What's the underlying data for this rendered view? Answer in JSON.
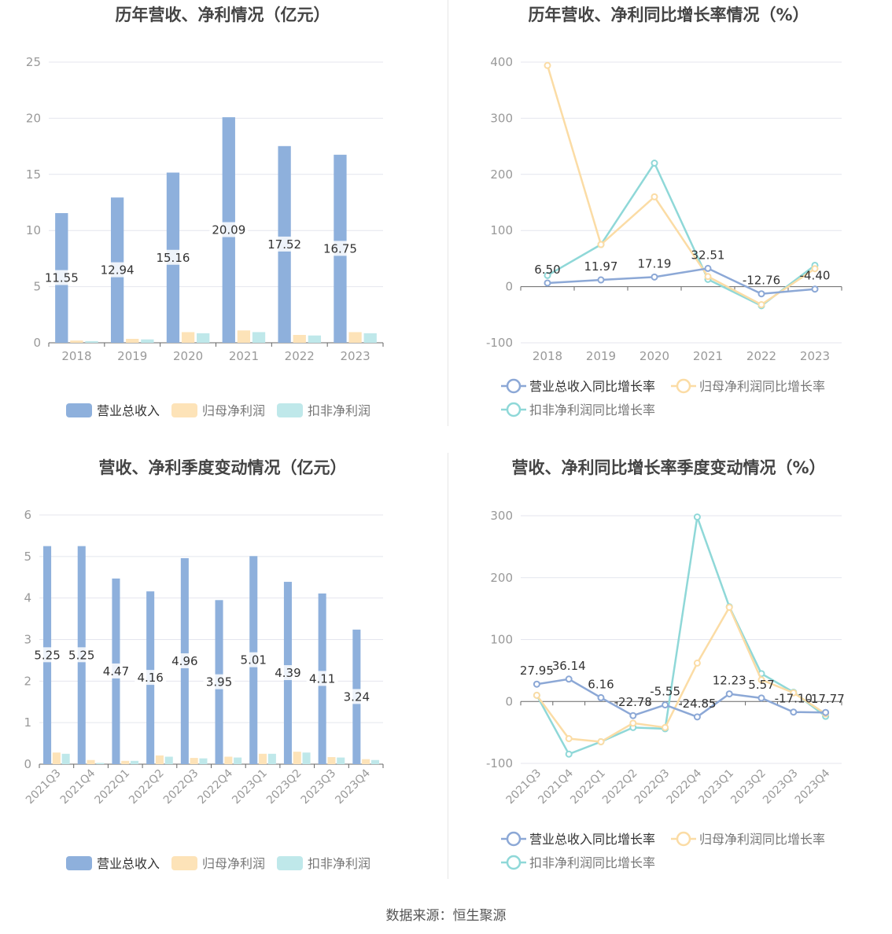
{
  "source": "数据来源：恒生聚源",
  "colors": {
    "revenue": "#8eb0dc",
    "parent_profit": "#fde3b8",
    "deducted_profit": "#bfe8ea",
    "revenue_line": "#8ca8d6",
    "parent_line": "#fbdca5",
    "deducted_line": "#8fd8d8",
    "axis_text": "#999999",
    "grid": "#e4e6ee",
    "title": "#444444"
  },
  "chart_data": [
    {
      "type": "bar",
      "title": "历年营收、净利情况（亿元）",
      "categories": [
        "2018",
        "2019",
        "2020",
        "2021",
        "2022",
        "2023"
      ],
      "ylim": [
        0,
        25
      ],
      "yticks": [
        "0",
        "5",
        "10",
        "15",
        "20",
        "25"
      ],
      "legend_position": "bottom",
      "series": [
        {
          "name": "营业总收入",
          "values": [
            11.55,
            12.94,
            15.16,
            20.09,
            17.52,
            16.75
          ],
          "labels": [
            "11.55",
            "12.94",
            "15.16",
            "20.09",
            "17.52",
            "16.75"
          ]
        },
        {
          "name": "归母净利润",
          "values": [
            0.2,
            0.35,
            0.95,
            1.1,
            0.7,
            0.95
          ]
        },
        {
          "name": "扣非净利润",
          "values": [
            0.15,
            0.3,
            0.85,
            0.95,
            0.65,
            0.85
          ]
        }
      ]
    },
    {
      "type": "line",
      "title": "历年营收、净利同比增长率情况（%）",
      "categories": [
        "2018",
        "2019",
        "2020",
        "2021",
        "2022",
        "2023"
      ],
      "ylim": [
        -100,
        400
      ],
      "yticks": [
        "-100",
        "0",
        "100",
        "200",
        "300",
        "400"
      ],
      "legend_position": "bottom",
      "series": [
        {
          "name": "营业总收入同比增长率",
          "values": [
            6.5,
            11.97,
            17.19,
            32.51,
            -12.76,
            -4.4
          ],
          "labels": [
            "6.50",
            "11.97",
            "17.19",
            "32.51",
            "-12.76",
            "-4.40"
          ]
        },
        {
          "name": "归母净利润同比增长率",
          "values": [
            394,
            75,
            160,
            18,
            -32,
            32
          ]
        },
        {
          "name": "扣非净利润同比增长率",
          "values": [
            20,
            75,
            220,
            13,
            -34,
            38
          ]
        }
      ]
    },
    {
      "type": "bar",
      "title": "营收、净利季度变动情况（亿元）",
      "categories": [
        "2021Q3",
        "2021Q4",
        "2022Q1",
        "2022Q2",
        "2022Q3",
        "2022Q4",
        "2023Q1",
        "2023Q2",
        "2023Q3",
        "2023Q4"
      ],
      "ylim": [
        0,
        6
      ],
      "yticks": [
        "0",
        "1",
        "2",
        "3",
        "4",
        "5",
        "6"
      ],
      "legend_position": "bottom",
      "series": [
        {
          "name": "营业总收入",
          "values": [
            5.25,
            5.25,
            4.47,
            4.16,
            4.96,
            3.95,
            5.01,
            4.39,
            4.11,
            3.24
          ],
          "labels": [
            "5.25",
            "5.25",
            "4.47",
            "4.16",
            "4.96",
            "3.95",
            "5.01",
            "4.39",
            "4.11",
            "3.24"
          ]
        },
        {
          "name": "归母净利润",
          "values": [
            0.28,
            0.1,
            0.08,
            0.21,
            0.15,
            0.18,
            0.25,
            0.3,
            0.17,
            0.12
          ]
        },
        {
          "name": "扣非净利润",
          "values": [
            0.25,
            0.03,
            0.08,
            0.18,
            0.14,
            0.16,
            0.25,
            0.28,
            0.16,
            0.1
          ]
        }
      ]
    },
    {
      "type": "line",
      "title": "营收、净利同比增长率季度变动情况（%）",
      "categories": [
        "2021Q3",
        "2021Q4",
        "2022Q1",
        "2022Q2",
        "2022Q3",
        "2022Q4",
        "2023Q1",
        "2023Q2",
        "2023Q3",
        "2023Q4"
      ],
      "ylim": [
        -100,
        300
      ],
      "yticks": [
        "-100",
        "0",
        "100",
        "200",
        "300"
      ],
      "legend_position": "bottom",
      "series": [
        {
          "name": "营业总收入同比增长率",
          "values": [
            27.95,
            36.14,
            6.16,
            -22.78,
            -5.55,
            -24.85,
            12.23,
            5.57,
            -17.1,
            -17.77
          ],
          "labels": [
            "27.95",
            "36.14",
            "6.16",
            "-22.78",
            "-5.55",
            "-24.85",
            "12.23",
            "5.57",
            "-17.10",
            "-17.77"
          ]
        },
        {
          "name": "归母净利润同比增长率",
          "values": [
            10,
            -60,
            -65,
            -35,
            -42,
            62,
            152,
            35,
            14,
            -20
          ]
        },
        {
          "name": "扣非净利润同比增长率",
          "values": [
            10,
            -85,
            -65,
            -42,
            -44,
            298,
            153,
            45,
            15,
            -24
          ]
        }
      ]
    }
  ]
}
